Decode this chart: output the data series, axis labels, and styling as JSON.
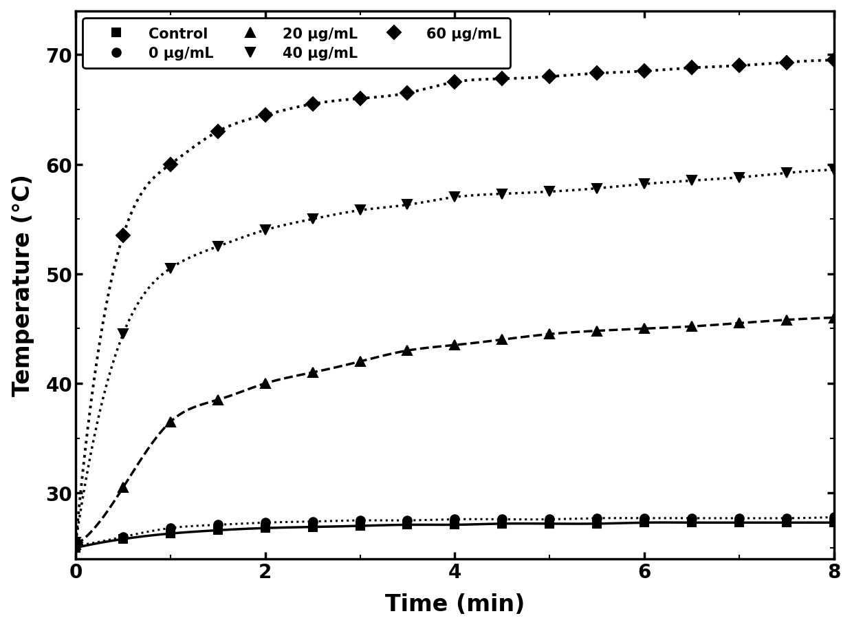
{
  "title": "",
  "xlabel": "Time (min)",
  "ylabel": "Temperature (°C)",
  "xlim": [
    0,
    8
  ],
  "ylim": [
    24,
    74
  ],
  "yticks": [
    30,
    40,
    50,
    60,
    70
  ],
  "xticks": [
    0,
    2,
    4,
    6,
    8
  ],
  "series": [
    {
      "label": "Control",
      "x": [
        0,
        0.5,
        1,
        1.5,
        2,
        2.5,
        3,
        3.5,
        4,
        4.5,
        5,
        5.5,
        6,
        6.5,
        7,
        7.5,
        8
      ],
      "y": [
        25.0,
        25.8,
        26.3,
        26.6,
        26.8,
        26.9,
        27.0,
        27.1,
        27.1,
        27.2,
        27.2,
        27.2,
        27.3,
        27.3,
        27.3,
        27.3,
        27.3
      ],
      "linestyle": "-",
      "marker": "s",
      "markersize": 8,
      "linewidth": 2.5,
      "color": "black",
      "markevery": 1
    },
    {
      "label": "0 μg/mL",
      "x": [
        0,
        0.5,
        1,
        1.5,
        2,
        2.5,
        3,
        3.5,
        4,
        4.5,
        5,
        5.5,
        6,
        6.5,
        7,
        7.5,
        8
      ],
      "y": [
        25.2,
        26.0,
        26.8,
        27.1,
        27.3,
        27.4,
        27.5,
        27.5,
        27.6,
        27.6,
        27.6,
        27.7,
        27.7,
        27.7,
        27.7,
        27.7,
        27.8
      ],
      "linestyle": ":",
      "marker": "o",
      "markersize": 9,
      "linewidth": 2.2,
      "color": "black",
      "markevery": 1
    },
    {
      "label": "20 μg/mL",
      "x": [
        0,
        0.5,
        1,
        1.5,
        2,
        2.5,
        3,
        3.5,
        4,
        4.5,
        5,
        5.5,
        6,
        6.5,
        7,
        7.5,
        8
      ],
      "y": [
        25.3,
        30.5,
        36.5,
        38.5,
        40.0,
        41.0,
        42.0,
        43.0,
        43.5,
        44.0,
        44.5,
        44.8,
        45.0,
        45.2,
        45.5,
        45.8,
        46.0
      ],
      "linestyle": "--",
      "marker": "^",
      "markersize": 10,
      "linewidth": 2.5,
      "color": "black",
      "markevery": 1
    },
    {
      "label": "40 μg/mL",
      "x": [
        0,
        0.5,
        1,
        1.5,
        2,
        2.5,
        3,
        3.5,
        4,
        4.5,
        5,
        5.5,
        6,
        6.5,
        7,
        7.5,
        8
      ],
      "y": [
        25.5,
        44.5,
        50.5,
        52.5,
        54.0,
        55.0,
        55.8,
        56.3,
        57.0,
        57.3,
        57.5,
        57.8,
        58.2,
        58.5,
        58.8,
        59.2,
        59.5
      ],
      "linestyle": ":",
      "marker": "v",
      "markersize": 10,
      "linewidth": 2.5,
      "color": "black",
      "markevery": 1
    },
    {
      "label": "60 μg/mL",
      "x": [
        0,
        0.5,
        1,
        1.5,
        2,
        2.5,
        3,
        3.5,
        4,
        4.5,
        5,
        5.5,
        6,
        6.5,
        7,
        7.5,
        8
      ],
      "y": [
        25.5,
        53.5,
        60.0,
        63.0,
        64.5,
        65.5,
        66.0,
        66.5,
        67.5,
        67.8,
        68.0,
        68.3,
        68.5,
        68.8,
        69.0,
        69.3,
        69.5
      ],
      "linestyle": ":",
      "marker": "D",
      "markersize": 10,
      "linewidth": 2.8,
      "color": "black",
      "markevery": 1
    }
  ],
  "legend_fontsize": 15,
  "axis_label_fontsize": 24,
  "tick_fontsize": 20,
  "background_color": "white"
}
